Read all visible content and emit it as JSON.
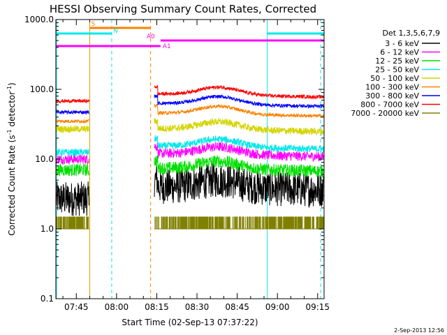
{
  "chart_data": {
    "type": "line",
    "title": "HESSI Observing Summary Count Rates, Corrected",
    "xlabel": "Start Time (02-Sep-13 07:37:22)",
    "ylabel_main": "Corrected Count Rate (s",
    "ylabel_sup1": "-1",
    "ylabel_mid": " detector",
    "ylabel_sup2": "-1",
    "ylabel_end": ")",
    "footer_date": "2-Sep-2013 12:56",
    "legend_title": "Det 1,3,5,6,7,9",
    "yscale": "log",
    "ylim": [
      0.1,
      1000
    ],
    "xlim_minutes": [
      457.37,
      557.4
    ],
    "y_ticks": [
      {
        "value": 0.1,
        "label": "0.1"
      },
      {
        "value": 1,
        "label": "1.0"
      },
      {
        "value": 10,
        "label": "10.0"
      },
      {
        "value": 100,
        "label": "100.0"
      },
      {
        "value": 1000,
        "label": "1000.0"
      }
    ],
    "x_ticks": [
      {
        "value": 465,
        "label": "07:45"
      },
      {
        "value": 480,
        "label": "08:00"
      },
      {
        "value": 495,
        "label": "08:15"
      },
      {
        "value": 510,
        "label": "08:30"
      },
      {
        "value": 525,
        "label": "08:45"
      },
      {
        "value": 540,
        "label": "09:00"
      },
      {
        "value": 555,
        "label": "09:15"
      }
    ],
    "data_segments": [
      [
        457.5,
        469.8
      ],
      [
        494.1,
        557.3
      ]
    ],
    "series": [
      {
        "name": "3 - 6 keV",
        "color": "#000000",
        "base_left": 2.7,
        "base_right": 3.5,
        "noise": 0.25
      },
      {
        "name": "6 - 12 keV",
        "color": "#ff00ff",
        "base_left": 10,
        "base_right": 10.5,
        "noise": 0.07
      },
      {
        "name": "12 - 25 keV",
        "color": "#00e000",
        "base_left": 7,
        "base_right": 6.5,
        "noise": 0.09
      },
      {
        "name": "25 - 50 keV",
        "color": "#00e8e8",
        "base_left": 12.5,
        "base_right": 13.5,
        "noise": 0.05
      },
      {
        "name": "50 - 100 keV",
        "color": "#d4d400",
        "base_left": 27,
        "base_right": 24,
        "noise": 0.05
      },
      {
        "name": "100 - 300 keV",
        "color": "#ff8000",
        "base_left": 35,
        "base_right": 40,
        "noise": 0.025
      },
      {
        "name": "300 - 800 keV",
        "color": "#0000ff",
        "base_left": 47,
        "base_right": 55,
        "noise": 0.025
      },
      {
        "name": "800 - 7000 keV",
        "color": "#ff0000",
        "base_left": 68,
        "base_right": 75,
        "noise": 0.025
      },
      {
        "name": "7000 - 20000 keV",
        "color": "#808000",
        "base_left": 1.5,
        "base_right": 1.5,
        "noise": 0
      }
    ],
    "vertical_lines": [
      {
        "x": 457.6,
        "color": "#00e8e8",
        "dashed": false
      },
      {
        "x": 470.0,
        "color": "#d4a000",
        "dashed": false
      },
      {
        "x": 478.2,
        "color": "#00e8e8",
        "dashed": true
      },
      {
        "x": 492.7,
        "color": "#ff8000",
        "dashed": true
      },
      {
        "x": 536.2,
        "color": "#00e8e8",
        "dashed": false
      },
      {
        "x": 556.1,
        "color": "#00e8e8",
        "dashed": true
      }
    ],
    "flag_bars": [
      {
        "label": "S",
        "color": "#ff8000",
        "x0": 470.0,
        "x1": 492.7,
        "y": 40
      },
      {
        "label": "N",
        "color": "#00e8e8",
        "x0": 457.5,
        "x1": 478.2,
        "y": 48
      },
      {
        "label": "",
        "color": "#00e8e8",
        "x0": 536.2,
        "x1": 557.4,
        "y": 48
      },
      {
        "label": "A0",
        "color": "#ff00ff",
        "x0": 496.4,
        "x1": 557.4,
        "y": 58
      },
      {
        "label": "A1",
        "color": "#ff00ff",
        "x0": 457.5,
        "x1": 496.4,
        "y": 66
      }
    ]
  }
}
